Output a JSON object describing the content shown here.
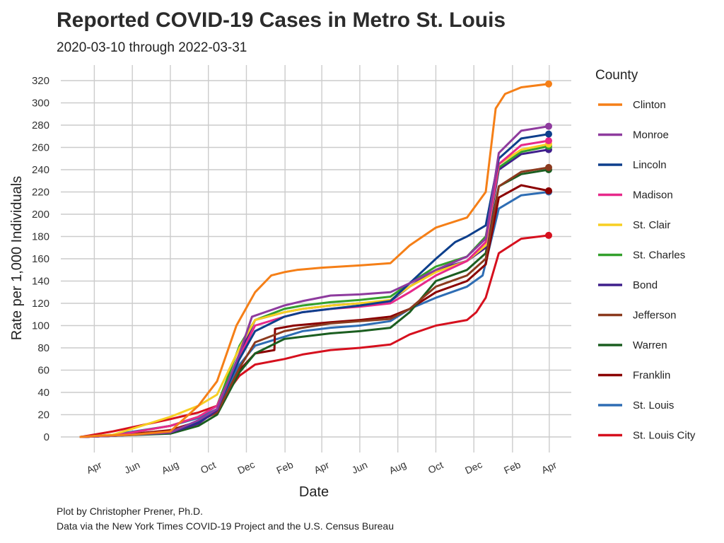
{
  "chart_data": {
    "type": "line",
    "title": "Reported COVID-19 Cases in Metro St. Louis",
    "subtitle": "2020-03-10 through 2022-03-31",
    "xlabel": "Date",
    "ylabel": "Rate per 1,000 Individuals",
    "xlim": [
      "2020-03-10",
      "2022-03-31"
    ],
    "ylim": [
      0,
      320
    ],
    "y_ticks": [
      0,
      20,
      40,
      60,
      80,
      100,
      120,
      140,
      160,
      180,
      200,
      220,
      240,
      260,
      280,
      300,
      320
    ],
    "x_ticks": [
      {
        "date": "2020-04-01",
        "label": "Apr"
      },
      {
        "date": "2020-06-01",
        "label": "Jun"
      },
      {
        "date": "2020-08-01",
        "label": "Aug"
      },
      {
        "date": "2020-10-01",
        "label": "Oct"
      },
      {
        "date": "2020-12-01",
        "label": "Dec"
      },
      {
        "date": "2021-02-01",
        "label": "Feb"
      },
      {
        "date": "2021-04-01",
        "label": "Apr"
      },
      {
        "date": "2021-06-01",
        "label": "Jun"
      },
      {
        "date": "2021-08-01",
        "label": "Aug"
      },
      {
        "date": "2021-10-01",
        "label": "Oct"
      },
      {
        "date": "2021-12-01",
        "label": "Dec"
      },
      {
        "date": "2022-02-01",
        "label": "Feb"
      },
      {
        "date": "2022-04-01",
        "label": "Apr"
      }
    ],
    "grid": true,
    "legend_title": "County",
    "legend_position": "right",
    "caption": [
      "Plot by Christopher Prener, Ph.D.",
      "Data via the New York Times COVID-19 Project and the U.S. Census Bureau"
    ],
    "series": [
      {
        "name": "Clinton",
        "color": "#f57f17",
        "x": [
          "2020-03-10",
          "2020-04-10",
          "2020-06-01",
          "2020-08-01",
          "2020-09-15",
          "2020-10-15",
          "2020-11-15",
          "2020-12-15",
          "2021-01-10",
          "2021-01-31",
          "2021-02-20",
          "2021-04-01",
          "2021-06-01",
          "2021-07-20",
          "2021-08-20",
          "2021-10-01",
          "2021-11-20",
          "2021-12-20",
          "2022-01-05",
          "2022-01-20",
          "2022-02-15",
          "2022-03-31"
        ],
        "y": [
          0,
          1,
          2,
          5,
          28,
          50,
          100,
          130,
          145,
          148,
          150,
          152,
          154,
          156,
          172,
          188,
          197,
          220,
          295,
          308,
          314,
          317
        ]
      },
      {
        "name": "Monroe",
        "color": "#8e3b9e",
        "x": [
          "2020-03-10",
          "2020-05-01",
          "2020-08-01",
          "2020-09-15",
          "2020-10-15",
          "2020-11-20",
          "2020-12-10",
          "2021-01-31",
          "2021-03-01",
          "2021-04-15",
          "2021-06-01",
          "2021-07-20",
          "2021-08-20",
          "2021-10-01",
          "2021-11-20",
          "2021-12-20",
          "2022-01-10",
          "2022-02-15",
          "2022-03-31"
        ],
        "y": [
          0,
          1,
          4,
          15,
          25,
          75,
          108,
          118,
          122,
          127,
          128,
          130,
          138,
          150,
          162,
          178,
          255,
          275,
          279
        ]
      },
      {
        "name": "Lincoln",
        "color": "#0d3f8c",
        "x": [
          "2020-03-10",
          "2020-05-01",
          "2020-08-01",
          "2020-09-15",
          "2020-10-15",
          "2020-11-20",
          "2020-12-15",
          "2021-01-31",
          "2021-03-01",
          "2021-04-15",
          "2021-06-01",
          "2021-07-20",
          "2021-08-20",
          "2021-10-01",
          "2021-11-01",
          "2021-11-20",
          "2021-12-20",
          "2022-01-10",
          "2022-02-15",
          "2022-03-31"
        ],
        "y": [
          0,
          1,
          4,
          14,
          25,
          70,
          95,
          108,
          112,
          115,
          118,
          122,
          138,
          160,
          175,
          180,
          190,
          250,
          268,
          272
        ]
      },
      {
        "name": "Madison",
        "color": "#e7298a",
        "x": [
          "2020-03-10",
          "2020-05-01",
          "2020-08-01",
          "2020-09-15",
          "2020-10-15",
          "2020-11-20",
          "2020-12-15",
          "2021-01-31",
          "2021-03-01",
          "2021-04-15",
          "2021-06-01",
          "2021-07-20",
          "2021-08-20",
          "2021-10-01",
          "2021-11-20",
          "2021-12-20",
          "2022-01-10",
          "2022-02-15",
          "2022-03-31"
        ],
        "y": [
          0,
          1,
          10,
          18,
          28,
          72,
          100,
          108,
          112,
          115,
          117,
          120,
          130,
          145,
          158,
          175,
          245,
          262,
          266
        ]
      },
      {
        "name": "St. Clair",
        "color": "#f7cf22",
        "x": [
          "2020-03-10",
          "2020-05-01",
          "2020-08-01",
          "2020-09-15",
          "2020-10-15",
          "2020-11-20",
          "2020-12-15",
          "2021-01-31",
          "2021-03-01",
          "2021-04-15",
          "2021-06-01",
          "2021-07-20",
          "2021-08-20",
          "2021-10-01",
          "2021-11-20",
          "2021-12-20",
          "2022-01-10",
          "2022-02-15",
          "2022-03-31"
        ],
        "y": [
          0,
          2,
          18,
          28,
          38,
          80,
          105,
          112,
          115,
          118,
          120,
          123,
          135,
          148,
          158,
          172,
          245,
          258,
          263
        ]
      },
      {
        "name": "St. Charles",
        "color": "#33a02c",
        "x": [
          "2020-03-10",
          "2020-05-01",
          "2020-08-01",
          "2020-09-15",
          "2020-10-15",
          "2020-11-20",
          "2020-12-15",
          "2021-01-31",
          "2021-03-01",
          "2021-04-15",
          "2021-06-01",
          "2021-07-20",
          "2021-08-20",
          "2021-10-01",
          "2021-11-20",
          "2021-12-20",
          "2022-01-10",
          "2022-02-15",
          "2022-03-31"
        ],
        "y": [
          0,
          1,
          10,
          18,
          28,
          82,
          105,
          115,
          118,
          121,
          123,
          126,
          138,
          153,
          162,
          180,
          242,
          256,
          261
        ]
      },
      {
        "name": "Bond",
        "color": "#3f1f8c",
        "x": [
          "2020-03-10",
          "2020-05-01",
          "2020-08-01",
          "2020-09-15",
          "2020-10-15",
          "2020-11-20",
          "2020-12-15",
          "2021-01-31",
          "2021-03-01",
          "2021-04-15",
          "2021-06-01",
          "2021-07-20",
          "2021-08-20",
          "2021-10-01",
          "2021-11-20",
          "2021-12-20",
          "2022-01-10",
          "2022-02-15",
          "2022-03-31"
        ],
        "y": [
          0,
          1,
          4,
          12,
          24,
          75,
          105,
          112,
          115,
          118,
          120,
          122,
          135,
          150,
          158,
          170,
          240,
          254,
          258
        ]
      },
      {
        "name": "Jefferson",
        "color": "#8b3a1e",
        "x": [
          "2020-03-10",
          "2020-05-01",
          "2020-08-01",
          "2020-09-15",
          "2020-10-15",
          "2020-11-20",
          "2020-12-15",
          "2021-01-31",
          "2021-03-01",
          "2021-04-15",
          "2021-06-01",
          "2021-07-20",
          "2021-08-20",
          "2021-10-01",
          "2021-11-20",
          "2021-12-20",
          "2022-01-10",
          "2022-02-15",
          "2022-03-31"
        ],
        "y": [
          0,
          1,
          5,
          14,
          22,
          62,
          85,
          95,
          98,
          102,
          104,
          106,
          115,
          135,
          145,
          160,
          225,
          238,
          242
        ]
      },
      {
        "name": "Warren",
        "color": "#1b5e20",
        "x": [
          "2020-03-10",
          "2020-05-01",
          "2020-08-01",
          "2020-09-15",
          "2020-10-15",
          "2020-11-20",
          "2020-12-15",
          "2021-01-31",
          "2021-03-01",
          "2021-04-15",
          "2021-06-01",
          "2021-07-20",
          "2021-08-20",
          "2021-10-01",
          "2021-11-20",
          "2021-12-20",
          "2022-01-10",
          "2022-02-15",
          "2022-03-31"
        ],
        "y": [
          0,
          1,
          3,
          10,
          20,
          58,
          75,
          88,
          90,
          93,
          95,
          98,
          112,
          140,
          150,
          165,
          225,
          236,
          240
        ]
      },
      {
        "name": "Franklin",
        "color": "#8b0000",
        "x": [
          "2020-03-10",
          "2020-05-01",
          "2020-08-01",
          "2020-09-15",
          "2020-10-15",
          "2020-11-20",
          "2020-12-15",
          "2021-01-15",
          "2021-01-16",
          "2021-02-15",
          "2021-04-15",
          "2021-06-01",
          "2021-07-20",
          "2021-08-20",
          "2021-10-01",
          "2021-11-20",
          "2021-12-20",
          "2022-01-10",
          "2022-02-15",
          "2022-03-31"
        ],
        "y": [
          0,
          1,
          6,
          14,
          22,
          60,
          75,
          78,
          97,
          100,
          103,
          105,
          108,
          115,
          130,
          140,
          155,
          215,
          226,
          221
        ]
      },
      {
        "name": "St. Louis",
        "color": "#2e6db4",
        "x": [
          "2020-03-10",
          "2020-05-01",
          "2020-08-01",
          "2020-09-15",
          "2020-10-15",
          "2020-11-20",
          "2020-12-15",
          "2021-01-31",
          "2021-03-01",
          "2021-04-15",
          "2021-06-01",
          "2021-07-20",
          "2021-08-20",
          "2021-10-01",
          "2021-11-20",
          "2021-12-15",
          "2022-01-10",
          "2022-02-15",
          "2022-03-31"
        ],
        "y": [
          0,
          2,
          10,
          17,
          25,
          65,
          82,
          90,
          95,
          98,
          100,
          104,
          115,
          125,
          135,
          145,
          205,
          217,
          220
        ]
      },
      {
        "name": "St. Louis City",
        "color": "#d6101e",
        "x": [
          "2020-03-10",
          "2020-05-01",
          "2020-08-01",
          "2020-09-15",
          "2020-10-15",
          "2020-11-20",
          "2020-12-15",
          "2021-01-31",
          "2021-03-01",
          "2021-04-15",
          "2021-06-01",
          "2021-07-20",
          "2021-08-20",
          "2021-10-01",
          "2021-11-20",
          "2021-12-05",
          "2021-12-20",
          "2022-01-10",
          "2022-02-15",
          "2022-03-31"
        ],
        "y": [
          0,
          5,
          16,
          22,
          28,
          55,
          65,
          70,
          74,
          78,
          80,
          83,
          92,
          100,
          105,
          112,
          125,
          165,
          178,
          181
        ]
      }
    ]
  }
}
